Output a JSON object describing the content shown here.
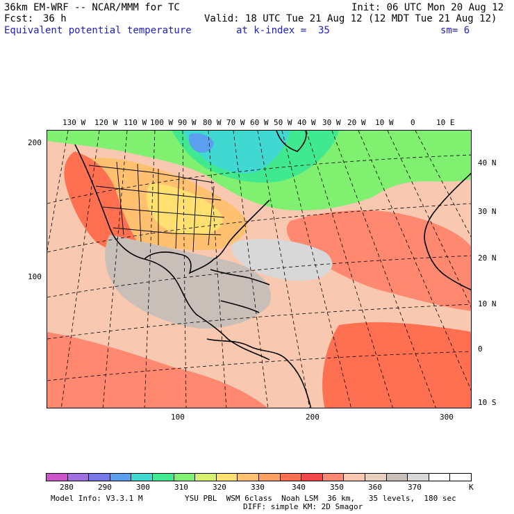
{
  "header": {
    "model": "36km EM-WRF -- NCAR/MMM for TC",
    "init": "Init: 06 UTC Mon 20 Aug 12",
    "fcst_label": "Fcst:",
    "fcst_value": "36 h",
    "valid": "Valid: 18 UTC Tue 21 Aug 12 (12 MDT Tue 21 Aug 12)",
    "field": "Equivalent potential temperature",
    "level": "at k-index =  35",
    "smoothing": "sm= 6"
  },
  "map": {
    "lon_labels": [
      "130 W",
      "120 W",
      "110 W",
      "100 W",
      "90 W",
      "80 W",
      "70 W",
      "60 W",
      "50 W",
      "40 W",
      "30 W",
      "20 W",
      "10 W",
      "0",
      "10 E"
    ],
    "lat_labels": [
      "40 N",
      "30 N",
      "20 N",
      "10 N",
      "0",
      "10 S"
    ],
    "grid_x_labels": [
      "100",
      "200",
      "300"
    ],
    "grid_y_labels": [
      "200",
      "100"
    ]
  },
  "colorbar": {
    "labels": [
      "280",
      "290",
      "300",
      "310",
      "320",
      "330",
      "340",
      "350",
      "360",
      "370"
    ],
    "unit": "K",
    "colors": [
      "#cc55cc",
      "#a070e0",
      "#7878e8",
      "#5aa0ee",
      "#40d8d0",
      "#40e890",
      "#80f070",
      "#d8f070",
      "#ffe070",
      "#ffc070",
      "#ffa060",
      "#ff7050",
      "#f04848",
      "#ff8870",
      "#f8c8b0",
      "#e8d0c0",
      "#c8c0b8",
      "#d8d8d8",
      "#ffffff",
      "#ffffff"
    ]
  },
  "footer": {
    "info": "Model Info: V3.3.1 M",
    "physics": "YSU PBL  WSM 6class  Noah LSM  36 km,   35 levels,  180 sec",
    "diffusion": "DIFF: simple KM: 2D Smagor"
  }
}
